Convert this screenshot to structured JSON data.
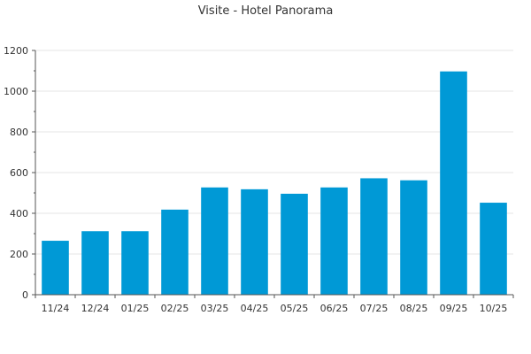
{
  "chart_data": {
    "type": "bar",
    "title": "Visite - Hotel Panorama",
    "xlabel": "",
    "ylabel": "",
    "categories": [
      "11/24",
      "12/24",
      "01/25",
      "02/25",
      "03/25",
      "04/25",
      "05/25",
      "06/25",
      "07/25",
      "08/25",
      "09/25",
      "10/25"
    ],
    "values": [
      265,
      312,
      312,
      418,
      527,
      518,
      496,
      527,
      572,
      562,
      1097,
      452
    ],
    "ylim": [
      0,
      1200
    ],
    "yticks": [
      0,
      200,
      400,
      600,
      800,
      1000,
      1200
    ],
    "grid": true,
    "legend": "none",
    "bar_color": "#0099d6"
  }
}
